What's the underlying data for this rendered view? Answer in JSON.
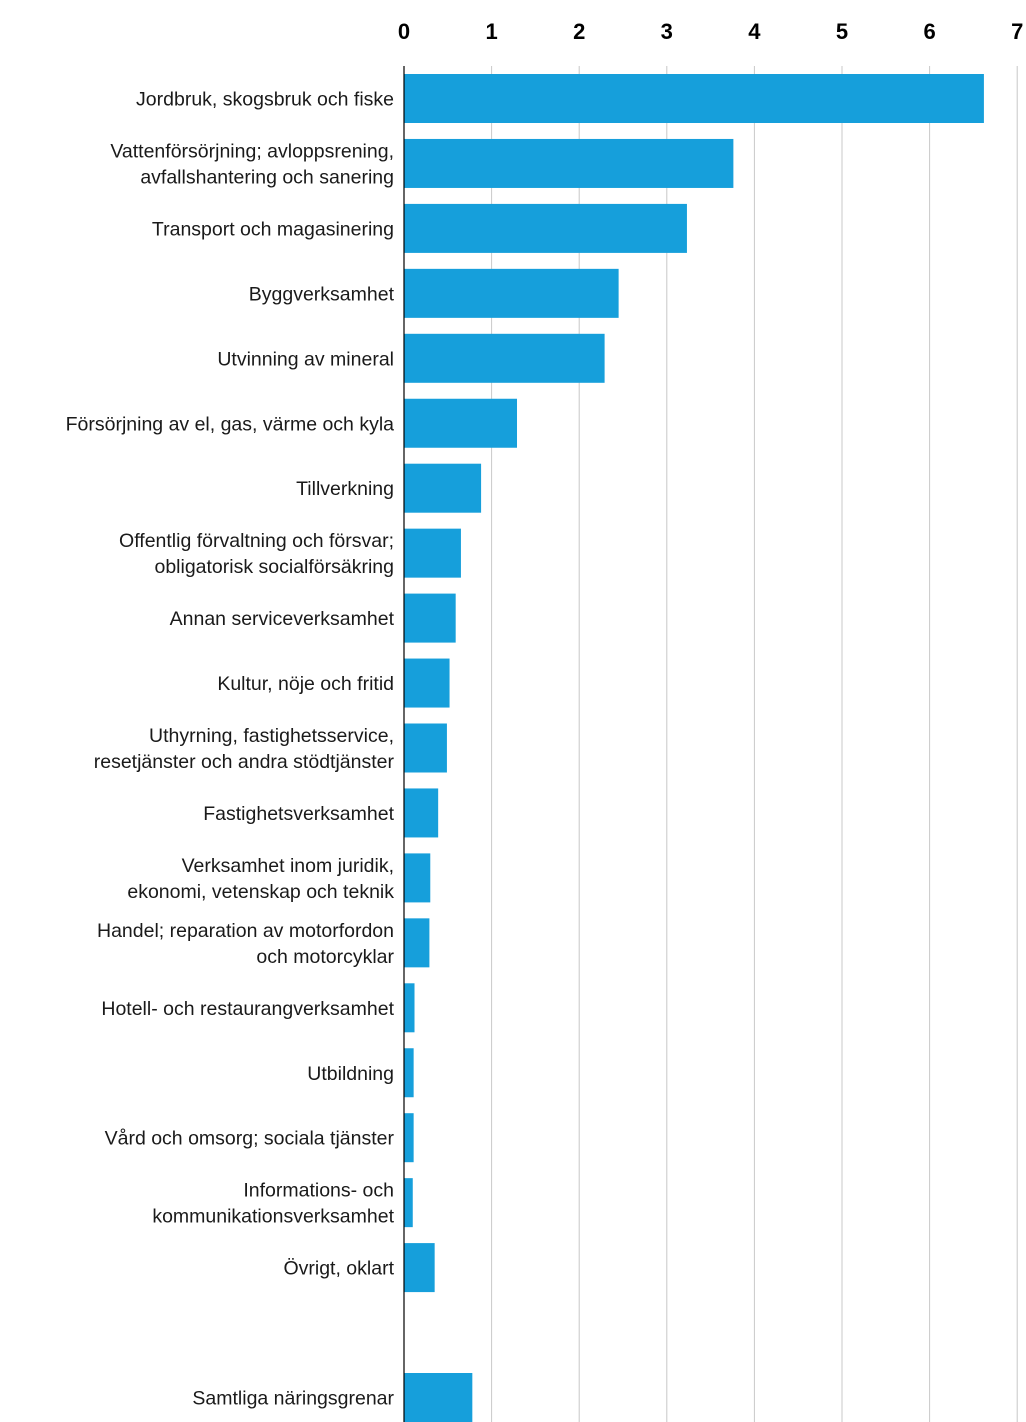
{
  "chart_data": {
    "type": "bar",
    "orientation": "horizontal",
    "categories": [
      [
        "Jordbruk, skogsbruk och fiske"
      ],
      [
        "Vattenförsörjning; avloppsrening,",
        "avfallshantering och sanering"
      ],
      [
        "Transport och magasinering"
      ],
      [
        "Byggverksamhet"
      ],
      [
        "Utvinning av mineral"
      ],
      [
        "Försörjning av el, gas, värme och kyla"
      ],
      [
        "Tillverkning"
      ],
      [
        "Offentlig förvaltning och försvar;",
        "obligatorisk socialförsäkring"
      ],
      [
        "Annan serviceverksamhet"
      ],
      [
        "Kultur, nöje och fritid"
      ],
      [
        "Uthyrning, fastighetsservice,",
        "resetjänster och andra stödtjänster"
      ],
      [
        "Fastighetsverksamhet"
      ],
      [
        "Verksamhet inom juridik,",
        "ekonomi, vetenskap och teknik"
      ],
      [
        "Handel; reparation av motorfordon",
        "och motorcyklar"
      ],
      [
        "Hotell- och restaurangverksamhet"
      ],
      [
        "Utbildning"
      ],
      [
        "Vård och omsorg; sociala tjänster"
      ],
      [
        "Informations- och",
        "kommunikationsverksamhet"
      ],
      [
        "Övrigt, oklart"
      ],
      [],
      [
        "Samtliga näringsgrenar"
      ]
    ],
    "values": [
      6.62,
      3.76,
      3.23,
      2.45,
      2.29,
      1.29,
      0.88,
      0.65,
      0.59,
      0.52,
      0.49,
      0.39,
      0.3,
      0.29,
      0.12,
      0.11,
      0.11,
      0.1,
      0.35,
      null,
      0.78
    ],
    "xticks": [
      "0",
      "1",
      "2",
      "3",
      "4",
      "5",
      "6",
      "7"
    ],
    "xlim": [
      0,
      7
    ],
    "grid": true,
    "axis_position": "top",
    "bar_color": "#169FDB"
  }
}
